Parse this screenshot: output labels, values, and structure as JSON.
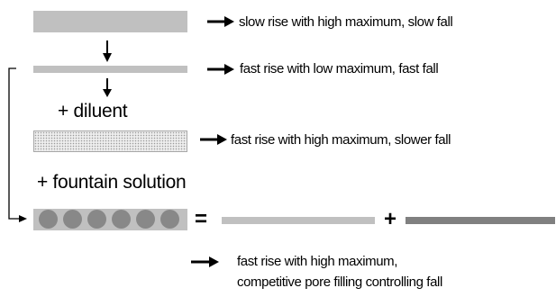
{
  "rows": [
    {
      "description": "slow rise with high maximum, slow fall"
    },
    {
      "description": "fast rise with low maximum, fast fall"
    },
    {
      "description": "fast rise with high maximum, slower fall"
    }
  ],
  "labels": {
    "diluent": "+ diluent",
    "fountain": "+ fountain solution"
  },
  "equation": {
    "equals": "=",
    "plus": "+"
  },
  "result": {
    "line1": "fast rise with high maximum,",
    "line2": "competitive pore filling controlling fall"
  },
  "colors": {
    "bar": "#c0c0c0",
    "dark_bar": "#808080",
    "circle": "#888888",
    "line": "#000000"
  }
}
